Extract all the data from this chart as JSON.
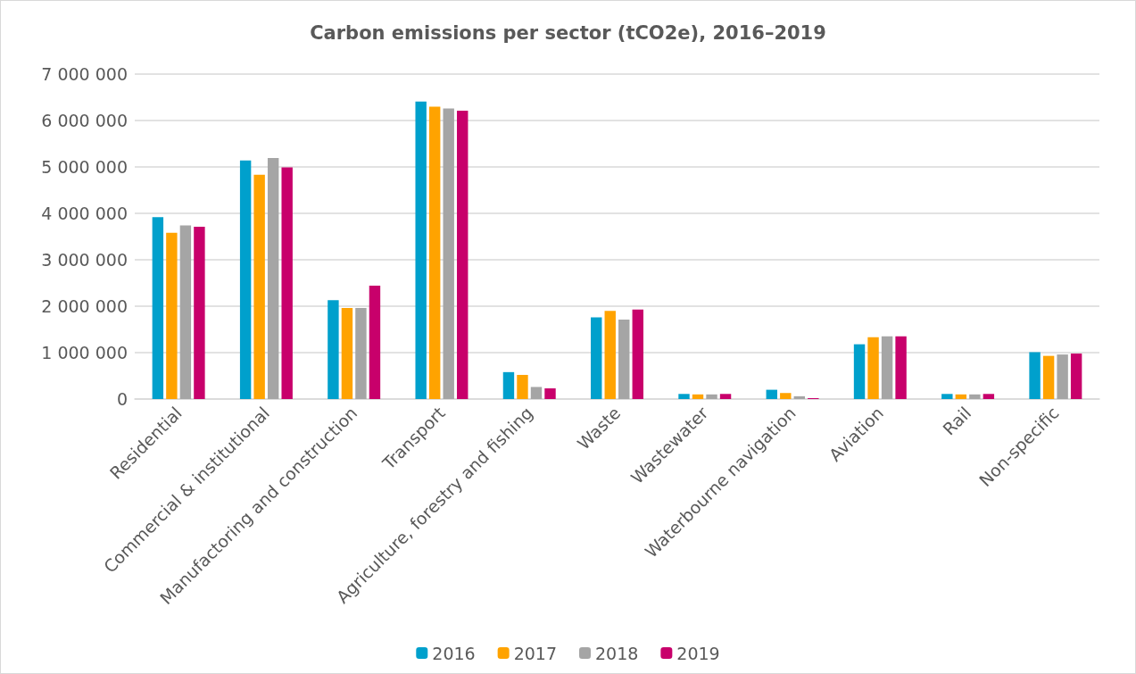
{
  "chart_data": {
    "type": "bar",
    "title": "Carbon emissions per sector (tCO2e), 2016–2019",
    "categories": [
      "Residential",
      "Commercial & institutional",
      "Manufactoring and construction",
      "Transport",
      "Agriculture, forestry and fishing",
      "Waste",
      "Wastewater",
      "Waterbourne navigation",
      "Aviation",
      "Rail",
      "Non-specific"
    ],
    "series": [
      {
        "name": "2016",
        "color": "#00a0cc",
        "values": [
          3920000,
          5140000,
          2130000,
          6410000,
          580000,
          1760000,
          110000,
          200000,
          1180000,
          110000,
          1010000
        ]
      },
      {
        "name": "2017",
        "color": "#ffa300",
        "values": [
          3580000,
          4830000,
          1960000,
          6300000,
          520000,
          1900000,
          100000,
          130000,
          1330000,
          100000,
          930000
        ]
      },
      {
        "name": "2018",
        "color": "#a5a5a5",
        "values": [
          3740000,
          5190000,
          1960000,
          6260000,
          260000,
          1710000,
          100000,
          60000,
          1350000,
          100000,
          960000
        ]
      },
      {
        "name": "2019",
        "color": "#c8006b",
        "values": [
          3710000,
          4990000,
          2440000,
          6210000,
          230000,
          1930000,
          110000,
          20000,
          1350000,
          110000,
          980000
        ]
      }
    ],
    "ylim": [
      0,
      7000000
    ],
    "yticks": [
      0,
      {
        "value": 1000000,
        "label": "1 000 000"
      },
      {
        "value": 2000000,
        "label": "2 000 000"
      },
      {
        "value": 3000000,
        "label": "3 000 000"
      },
      {
        "value": 4000000,
        "label": "4 000 000"
      },
      {
        "value": 5000000,
        "label": "5 000 000"
      },
      {
        "value": 6000000,
        "label": "6 000 000"
      },
      {
        "value": 7000000,
        "label": "7 000 000"
      }
    ],
    "grid": "y",
    "legend": "bottom"
  }
}
